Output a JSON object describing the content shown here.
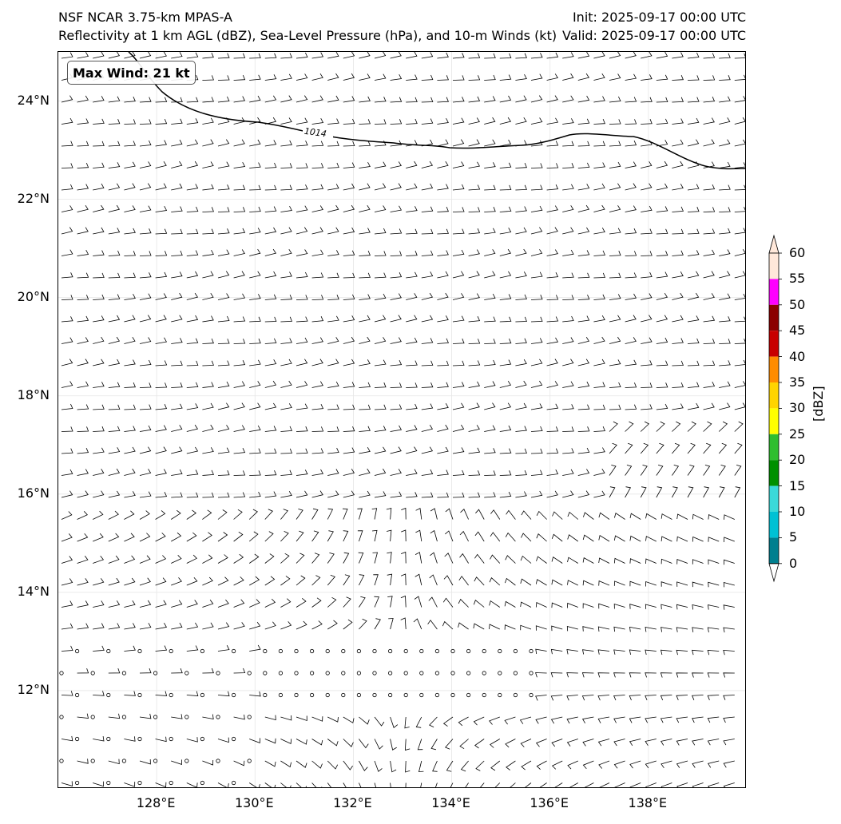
{
  "header": {
    "title_left_line1": "NSF NCAR 3.75-km MPAS-A",
    "title_left_line2": "Reflectivity at 1 km AGL (dBZ), Sea-Level Pressure (hPa), and 10-m Winds (kt)",
    "init": "Init: 2025-09-17 00:00 UTC",
    "valid": "Valid: 2025-09-17 00:00 UTC"
  },
  "map": {
    "lon_range": [
      126.0,
      140.0
    ],
    "lat_range": [
      10.0,
      25.0
    ],
    "lat_ticks": [
      "24°N",
      "22°N",
      "20°N",
      "18°N",
      "16°N",
      "14°N",
      "12°N"
    ],
    "lon_ticks": [
      "128°E",
      "130°E",
      "132°E",
      "134°E",
      "136°E",
      "138°E"
    ],
    "gridlines": true
  },
  "isobar": {
    "label": "1014"
  },
  "max_wind_label": "Max Wind: 21 kt",
  "colorbar": {
    "ticks": [
      "0",
      "5",
      "10",
      "15",
      "20",
      "25",
      "30",
      "35",
      "40",
      "45",
      "50",
      "55",
      "60"
    ],
    "label": "[dBZ]",
    "colors": [
      "#ffffff",
      "#007f8f",
      "#00c1d4",
      "#3ad9d9",
      "#009000",
      "#2fbe2f",
      "#ffff00",
      "#ffd400",
      "#ff8c00",
      "#c80000",
      "#8b0000",
      "#ff00ff",
      "#ffe8da"
    ]
  }
}
